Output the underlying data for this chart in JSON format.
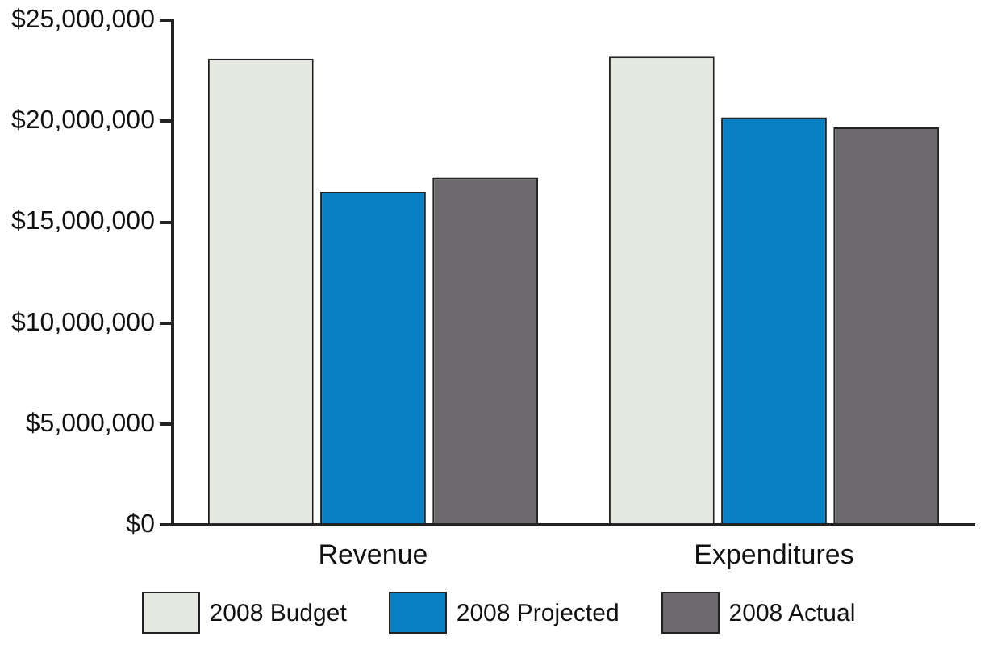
{
  "chart_data": {
    "type": "bar",
    "categories": [
      "Revenue",
      "Expenditures"
    ],
    "series": [
      {
        "name": "2008 Budget",
        "color": "#e6e8e2",
        "values": [
          23100000,
          23200000
        ]
      },
      {
        "name": "2008 Projected",
        "color": "#0a7fc4",
        "values": [
          16500000,
          20200000
        ]
      },
      {
        "name": "2008 Actual",
        "color": "#6d6a6e",
        "values": [
          17200000,
          19700000
        ]
      }
    ],
    "ylim": [
      0,
      25000000
    ],
    "yticks": [
      {
        "value": 0,
        "label": "$0"
      },
      {
        "value": 5000000,
        "label": "$5,000,000"
      },
      {
        "value": 10000000,
        "label": "$10,000,000"
      },
      {
        "value": 15000000,
        "label": "$15,000,000"
      },
      {
        "value": 20000000,
        "label": "$20,000,000"
      },
      {
        "value": 25000000,
        "label": "$25,000,000"
      }
    ],
    "grid": false,
    "legend": "bottom"
  }
}
